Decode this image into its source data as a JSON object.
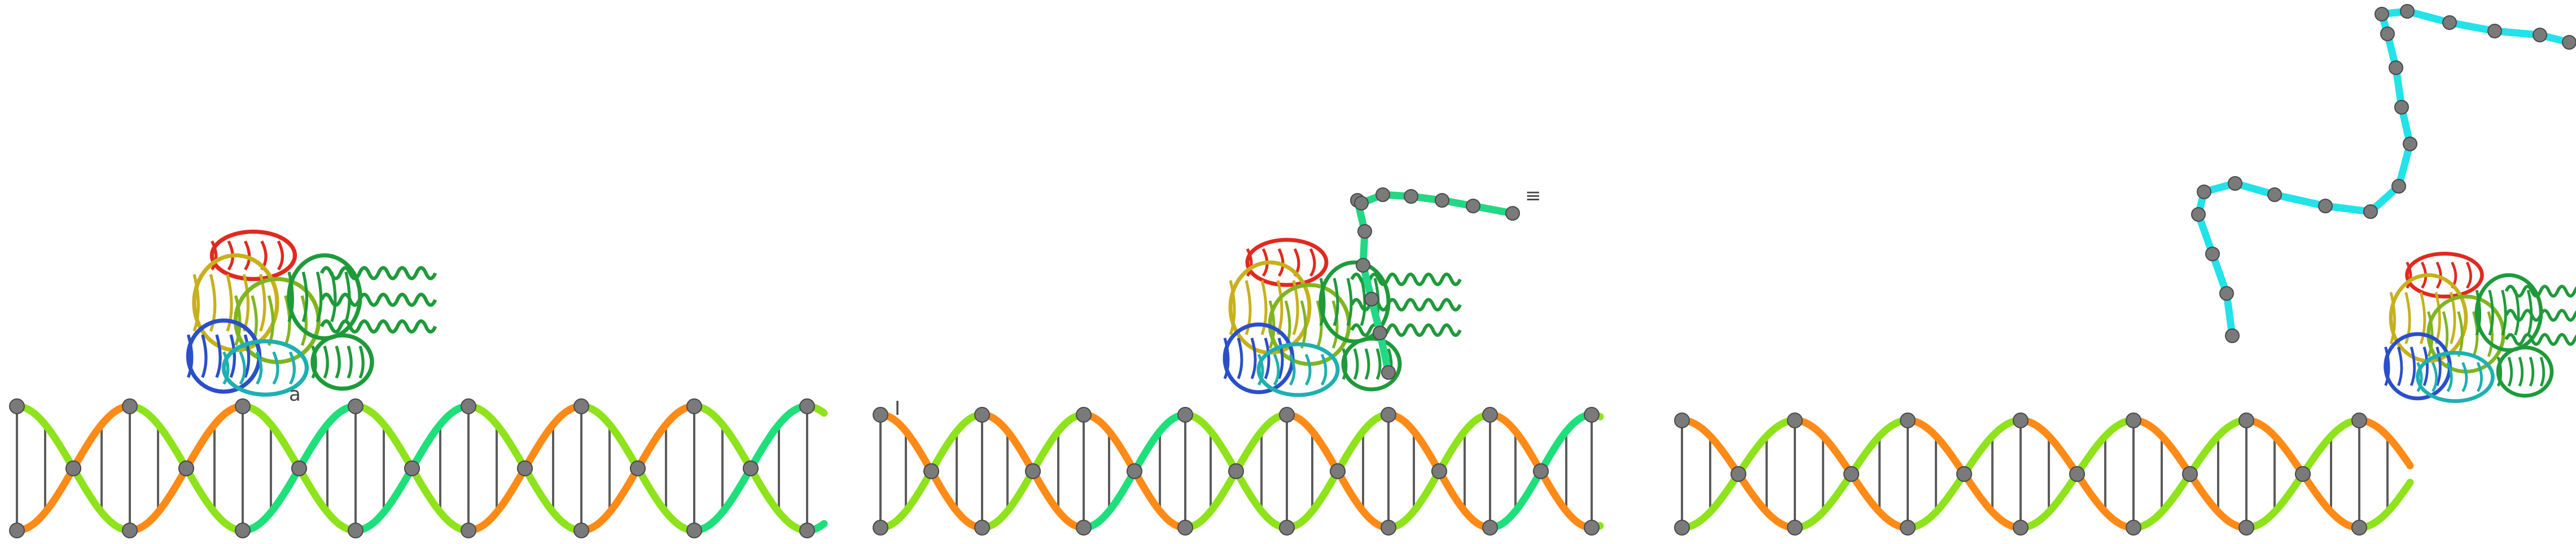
{
  "figure": {
    "panels": [
      {
        "id": "panel-1",
        "label": "a",
        "strand_colors": [
          "#ff8a16",
          "#8ee31b",
          "#1de07a"
        ],
        "protein_present": true,
        "ssdna_present": false
      },
      {
        "id": "panel-2",
        "label": "I",
        "strand_colors": [
          "#ff8a16",
          "#8ee31b",
          "#1de07a"
        ],
        "protein_present": true,
        "ssdna_present": true,
        "ssdna_color": "#22d884",
        "ssdna_tag": "≡"
      },
      {
        "id": "panel-3",
        "label": "",
        "strand_colors": [
          "#ff8a16",
          "#8ee31b"
        ],
        "protein_present": true,
        "ssdna_present": true,
        "ssdna_color": "#22e2ea"
      }
    ],
    "colors": {
      "rung": "#5c5c5c",
      "bead": "#7a7a7a",
      "bead_outline": "#4a4a4a",
      "protein_red": "#e02a1f",
      "protein_green": "#1f9a3a",
      "protein_yellow": "#c8b01a",
      "protein_blue": "#2a4fc8",
      "protein_cyan": "#1fb0b0"
    },
    "icons": [
      "dna-double-helix",
      "protein-ribbon",
      "single-strand-chain"
    ]
  }
}
